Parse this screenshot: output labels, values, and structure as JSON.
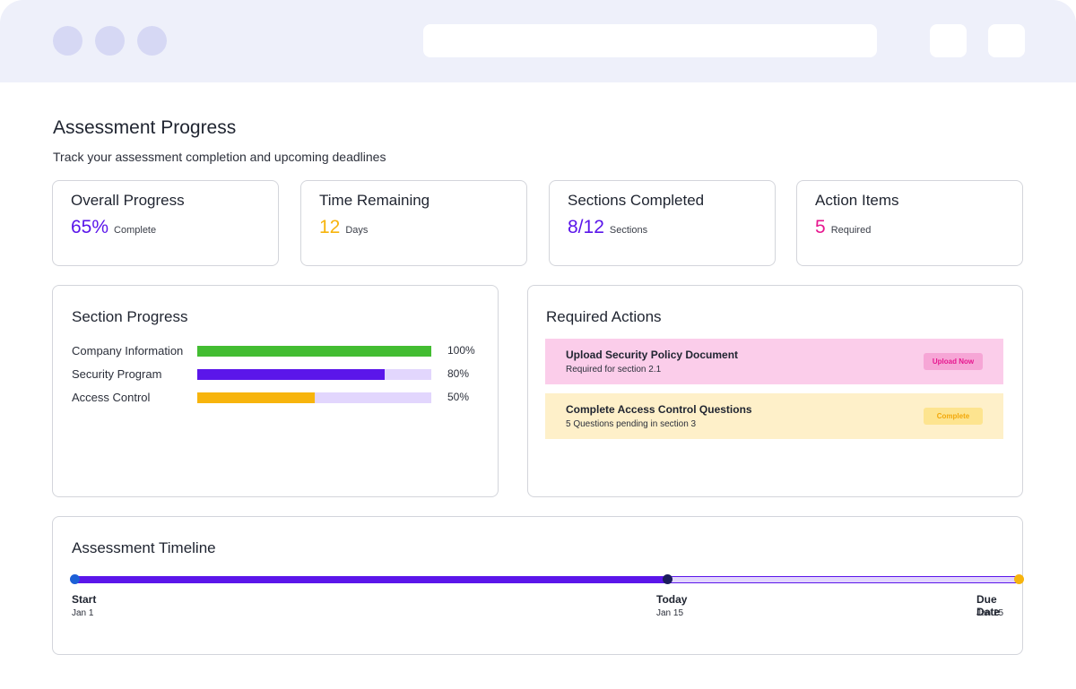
{
  "colors": {
    "purple": "#5b16ea",
    "purple_light": "#e2d6fd",
    "green": "#43bd32",
    "amber": "#f7b40d",
    "pink": "#e7178f",
    "pink_bg": "#fbcdea",
    "amber_bg": "#fef0c9"
  },
  "page": {
    "title": "Assessment Progress",
    "subtitle": "Track your assessment completion and upcoming deadlines"
  },
  "stats": [
    {
      "label": "Overall Progress",
      "value": "65%",
      "unit": "Complete",
      "color": "#5b16ea"
    },
    {
      "label": "Time Remaining",
      "value": "12",
      "unit": "Days",
      "color": "#f7b40d"
    },
    {
      "label": "Sections Completed",
      "value": "8/12",
      "unit": "Sections",
      "color": "#5b16ea"
    },
    {
      "label": "Action Items",
      "value": "5",
      "unit": "Required",
      "color": "#e7178f"
    }
  ],
  "section_progress": {
    "title": "Section Progress",
    "rows": [
      {
        "label": "Company Information",
        "percent": 100,
        "percent_label": "100%",
        "color": "#43bd32"
      },
      {
        "label": "Security Program",
        "percent": 80,
        "percent_label": "80%",
        "color": "#5b16ea"
      },
      {
        "label": "Access Control",
        "percent": 50,
        "percent_label": "50%",
        "color": "#f7b40d"
      }
    ]
  },
  "required_actions": {
    "title": "Required Actions",
    "items": [
      {
        "title": "Upload Security Policy Document",
        "subtitle": "Required for section 2.1",
        "button": "Upload Now",
        "bg": "#fbcdea",
        "button_bg": "#f6a6d6",
        "button_color": "#e7178f"
      },
      {
        "title": "Complete Access Control Questions",
        "subtitle": "5 Questions pending in section 3",
        "button": "Complete",
        "bg": "#fef0c9",
        "button_bg": "#fde48f",
        "button_color": "#f2a80a"
      }
    ]
  },
  "timeline": {
    "title": "Assessment Timeline",
    "progress_fraction": 0.628,
    "milestones": [
      {
        "label": "Start",
        "date": "Jan 1"
      },
      {
        "label": "Today",
        "date": "Jan 15"
      },
      {
        "label": "Due Date",
        "date": "Jan 25"
      }
    ]
  }
}
